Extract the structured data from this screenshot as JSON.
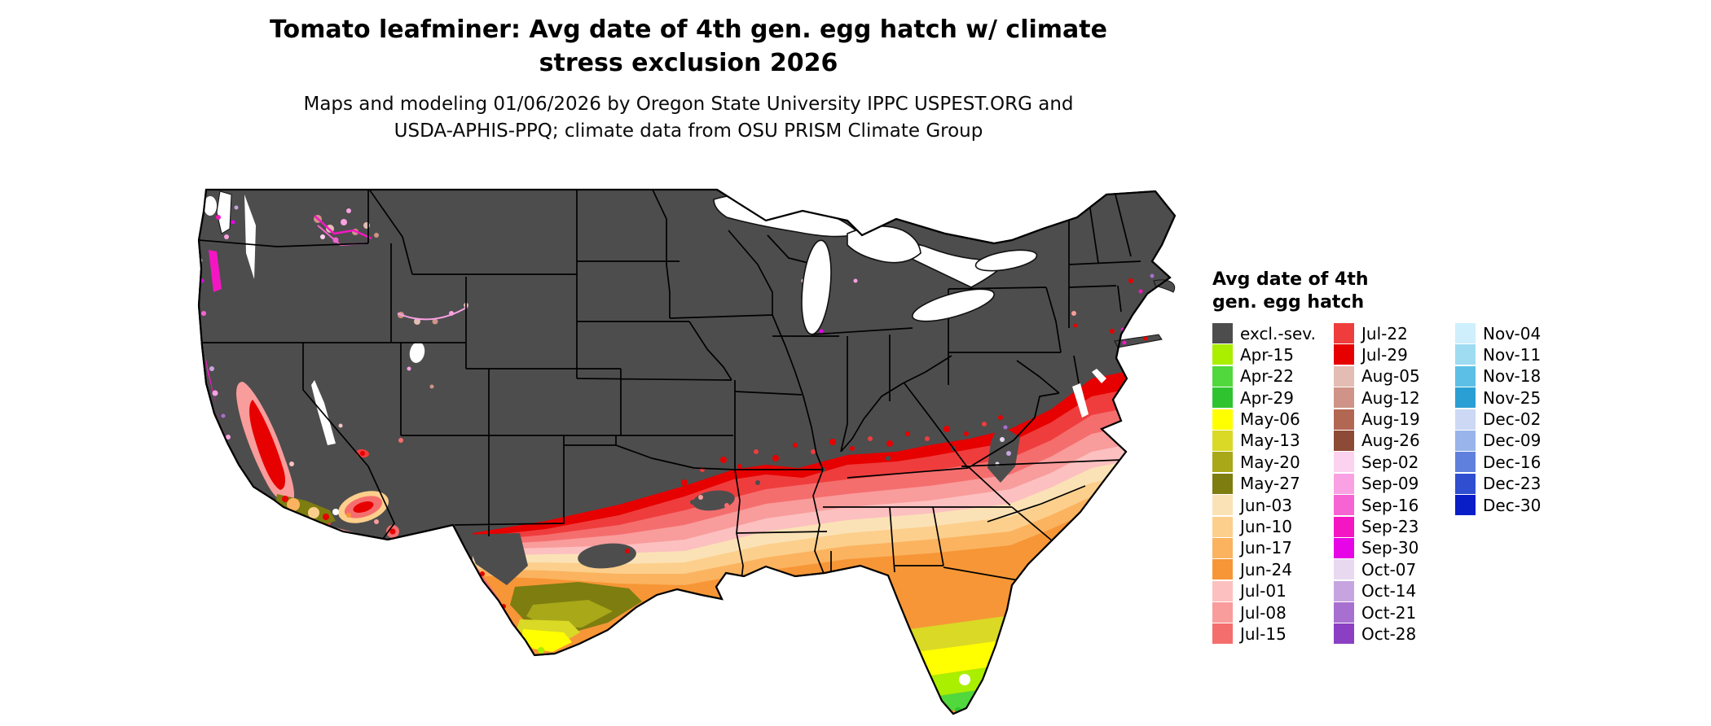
{
  "title": {
    "line1": "Tomato leafminer: Avg date of 4th gen. egg hatch w/ climate",
    "line2": "stress exclusion 2026"
  },
  "subtitle": {
    "line1": "Maps and modeling 01/06/2026 by Oregon State University IPPC USPEST.ORG and",
    "line2": "USDA-APHIS-PPQ; climate data from OSU PRISM Climate Group"
  },
  "legend": {
    "title_line1": "Avg date of 4th",
    "title_line2": "gen. egg hatch",
    "columns": [
      {
        "entries": [
          {
            "label": "excl.-sev.",
            "color": "#4d4d4d"
          },
          {
            "label": "Apr-15",
            "color": "#aaee00"
          },
          {
            "label": "Apr-22",
            "color": "#50d83c"
          },
          {
            "label": "Apr-29",
            "color": "#2fc42f"
          },
          {
            "label": "May-06",
            "color": "#ffff00"
          },
          {
            "label": "May-13",
            "color": "#d9d926"
          },
          {
            "label": "May-20",
            "color": "#a8a818"
          },
          {
            "label": "May-27",
            "color": "#7d7d10"
          },
          {
            "label": "Jun-03",
            "color": "#fbe2b6"
          },
          {
            "label": "Jun-10",
            "color": "#fccf8c"
          },
          {
            "label": "Jun-17",
            "color": "#fbb35f"
          },
          {
            "label": "Jun-24",
            "color": "#f79636"
          },
          {
            "label": "Jul-01",
            "color": "#fcc0c0"
          },
          {
            "label": "Jul-08",
            "color": "#f99c9c"
          },
          {
            "label": "Jul-15",
            "color": "#f56e6e"
          }
        ]
      },
      {
        "entries": [
          {
            "label": "Jul-22",
            "color": "#ef3d3d"
          },
          {
            "label": "Jul-29",
            "color": "#e60000"
          },
          {
            "label": "Aug-05",
            "color": "#e3bcb4"
          },
          {
            "label": "Aug-12",
            "color": "#cf9387"
          },
          {
            "label": "Aug-19",
            "color": "#b26753"
          },
          {
            "label": "Aug-26",
            "color": "#8d4a36"
          },
          {
            "label": "Sep-02",
            "color": "#fbd2ef"
          },
          {
            "label": "Sep-09",
            "color": "#f9a1e3"
          },
          {
            "label": "Sep-16",
            "color": "#f564d2"
          },
          {
            "label": "Sep-23",
            "color": "#f516c3"
          },
          {
            "label": "Sep-30",
            "color": "#e705e7"
          },
          {
            "label": "Oct-07",
            "color": "#e8d9f1"
          },
          {
            "label": "Oct-14",
            "color": "#c7a4e0"
          },
          {
            "label": "Oct-21",
            "color": "#a76fd0"
          },
          {
            "label": "Oct-28",
            "color": "#8b3fc2"
          }
        ]
      },
      {
        "entries": [
          {
            "label": "Nov-04",
            "color": "#cfeffc"
          },
          {
            "label": "Nov-11",
            "color": "#9fdcf2"
          },
          {
            "label": "Nov-18",
            "color": "#5cc0e6"
          },
          {
            "label": "Nov-25",
            "color": "#2a9fd4"
          },
          {
            "label": "Dec-02",
            "color": "#ccd8f4"
          },
          {
            "label": "Dec-09",
            "color": "#98b4ea"
          },
          {
            "label": "Dec-16",
            "color": "#5f80dd"
          },
          {
            "label": "Dec-23",
            "color": "#2f4fd0"
          },
          {
            "label": "Dec-30",
            "color": "#0a1ec8"
          }
        ]
      }
    ]
  },
  "map": {
    "kind": "Choropleth raster map of the continental United States with state boundaries",
    "water_fill": "#ffffff",
    "dominant_regions": [
      {
        "region": "Northern, central and mountain US; Appalachians",
        "class": "excl.-sev."
      },
      {
        "region": "Band from eastern Oklahoma/Missouri through Kentucky and Virginia to the Mid-Atlantic coast",
        "class": "Jul-22 to Jul-29"
      },
      {
        "region": "Mid-South: Arkansas, Tennessee, Carolina piedmont",
        "class": "Jul-01 to Jul-15"
      },
      {
        "region": "Gulf Coast states and lower Southeast",
        "class": "Jun-03 to Jun-24"
      },
      {
        "region": "South Texas",
        "class": "May-06 to May-27"
      },
      {
        "region": "Central and southern Florida",
        "class": "Apr-15 to May-13"
      },
      {
        "region": "California Central Valley, Las Vegas and desert Southwest lowlands",
        "class": "Jul-01 to Jul-29"
      },
      {
        "region": "Pacific coastal strip and Willamette/Puget lowlands",
        "class": "Sep-09 to Oct-28"
      },
      {
        "region": "Columbia Basin and Snake River Plain specks",
        "class": "Aug-05 to Sep-16"
      }
    ]
  }
}
